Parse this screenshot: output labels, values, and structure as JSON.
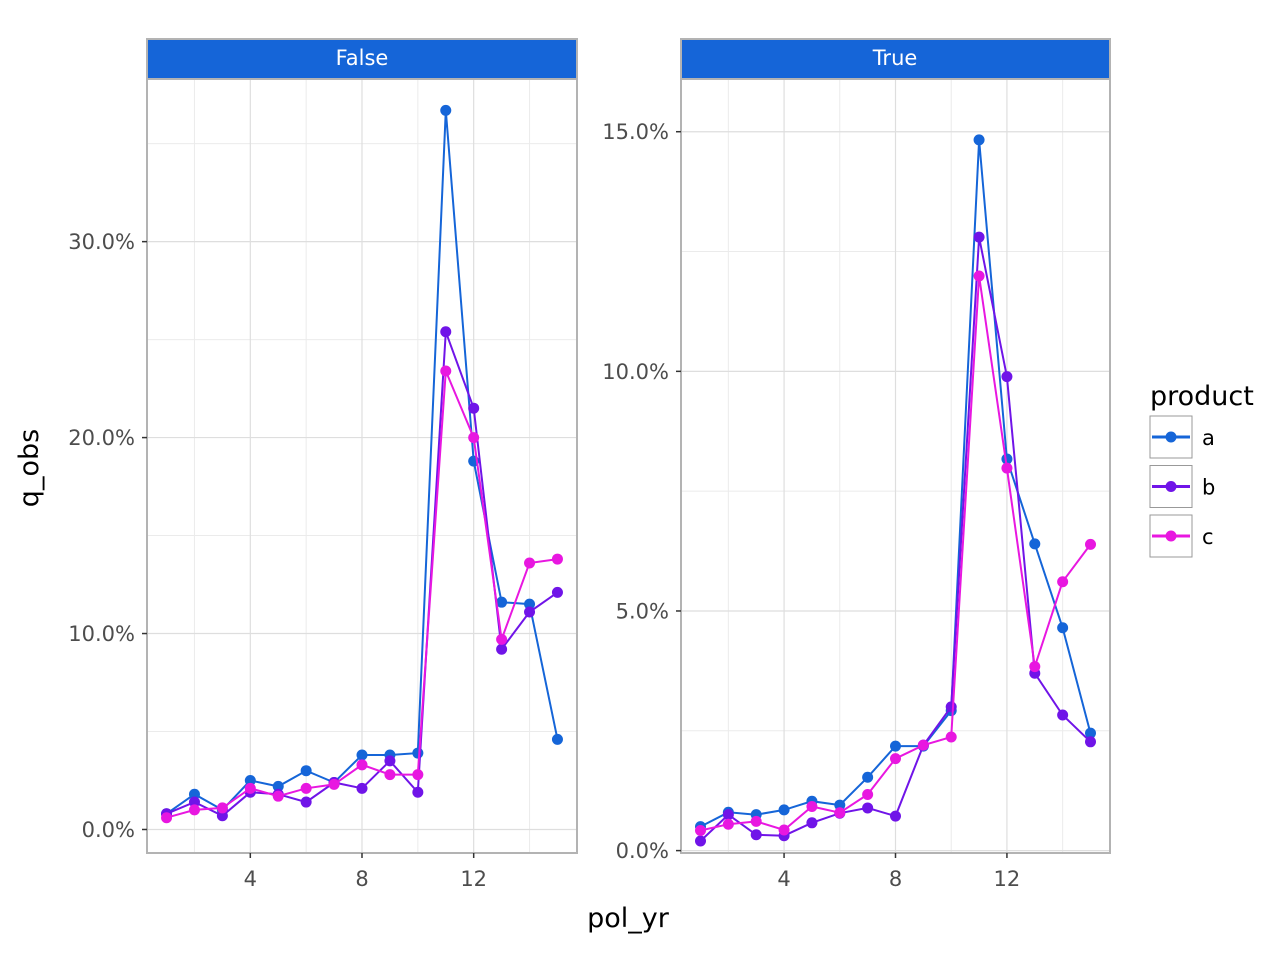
{
  "chart_data": {
    "type": "line",
    "x_label": "pol_yr",
    "y_label": "q_obs",
    "x_ticks": [
      4,
      8,
      12
    ],
    "xlim": [
      0.3,
      15.7
    ],
    "legend": {
      "title": "product",
      "position": "right"
    },
    "grid": true,
    "colors": {
      "a": "#1565d8",
      "b": "#7014e8",
      "c": "#e817e0",
      "strip": "#1565d8"
    },
    "panels": [
      {
        "label": "False",
        "ylim": [
          -0.012,
          0.383
        ],
        "y_ticks": [
          0,
          0.1,
          0.2,
          0.3
        ],
        "y_tick_labels": [
          "0.0%",
          "10.0%",
          "20.0%",
          "30.0%"
        ],
        "series": [
          {
            "name": "a",
            "x": [
              1,
              2,
              3,
              4,
              5,
              6,
              7,
              8,
              9,
              10,
              11,
              12,
              13,
              14,
              15
            ],
            "y": [
              0.008,
              0.018,
              0.01,
              0.025,
              0.022,
              0.03,
              0.024,
              0.038,
              0.038,
              0.039,
              0.367,
              0.188,
              0.116,
              0.115,
              0.046
            ]
          },
          {
            "name": "b",
            "x": [
              1,
              2,
              3,
              4,
              5,
              6,
              7,
              8,
              9,
              10,
              11,
              12,
              13,
              14,
              15
            ],
            "y": [
              0.008,
              0.014,
              0.007,
              0.019,
              0.018,
              0.014,
              0.024,
              0.021,
              0.035,
              0.019,
              0.254,
              0.215,
              0.092,
              0.111,
              0.121
            ]
          },
          {
            "name": "c",
            "x": [
              1,
              2,
              3,
              4,
              5,
              6,
              7,
              8,
              9,
              10,
              11,
              12,
              13,
              14,
              15
            ],
            "y": [
              0.006,
              0.01,
              0.011,
              0.021,
              0.017,
              0.021,
              0.023,
              0.033,
              0.028,
              0.028,
              0.234,
              0.2,
              0.097,
              0.136,
              0.138
            ]
          }
        ]
      },
      {
        "label": "True",
        "ylim": [
          -0.0005,
          0.161
        ],
        "y_ticks": [
          0,
          0.05,
          0.1,
          0.15
        ],
        "y_tick_labels": [
          "0.0%",
          "5.0%",
          "10.0%",
          "15.0%"
        ],
        "series": [
          {
            "name": "a",
            "x": [
              1,
              2,
              3,
              4,
              5,
              6,
              7,
              8,
              9,
              10,
              11,
              12,
              13,
              14,
              15
            ],
            "y": [
              0.005,
              0.008,
              0.0075,
              0.0085,
              0.0103,
              0.0095,
              0.0153,
              0.0218,
              0.0218,
              0.0292,
              0.1483,
              0.0817,
              0.064,
              0.0465,
              0.0245
            ]
          },
          {
            "name": "b",
            "x": [
              1,
              2,
              3,
              4,
              5,
              6,
              7,
              8,
              9,
              10,
              11,
              12,
              13,
              14,
              15
            ],
            "y": [
              0.002,
              0.0075,
              0.0033,
              0.0031,
              0.0058,
              0.0078,
              0.0089,
              0.0072,
              0.022,
              0.03,
              0.128,
              0.0989,
              0.037,
              0.0283,
              0.0227
            ]
          },
          {
            "name": "c",
            "x": [
              1,
              2,
              3,
              4,
              5,
              6,
              7,
              8,
              9,
              10,
              11,
              12,
              13,
              14,
              15
            ],
            "y": [
              0.0042,
              0.0055,
              0.0061,
              0.0043,
              0.0092,
              0.0079,
              0.0117,
              0.0192,
              0.022,
              0.0237,
              0.1199,
              0.0798,
              0.0384,
              0.0561,
              0.0639
            ]
          }
        ]
      }
    ]
  }
}
